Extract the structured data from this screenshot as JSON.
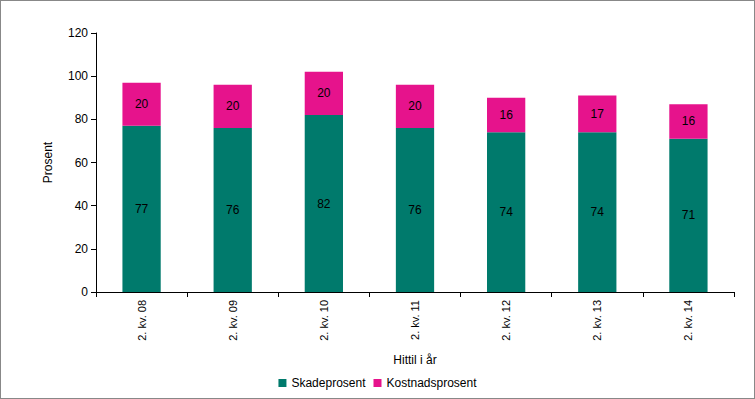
{
  "chart_data": {
    "type": "bar",
    "stacked": true,
    "data_labels": true,
    "grid": false,
    "legend": "bottom",
    "x_label": "Hittil i år",
    "y_label": "Prosent",
    "categories": [
      "2. kv. 08",
      "2. kv. 09",
      "2. kv. 10",
      "2. kv. 11",
      "2. kv. 12",
      "2. kv. 13",
      "2. kv. 14"
    ],
    "series": [
      {
        "name": "Skadeprosent",
        "color": "#007a6c",
        "values": [
          77,
          76,
          82,
          76,
          74,
          74,
          71
        ]
      },
      {
        "name": "Kostnadsprosent",
        "color": "#e6138c",
        "values": [
          20,
          20,
          20,
          20,
          16,
          17,
          16
        ]
      }
    ],
    "ylim": [
      0,
      120
    ],
    "yticks": [
      0,
      20,
      40,
      60,
      80,
      100,
      120
    ]
  }
}
